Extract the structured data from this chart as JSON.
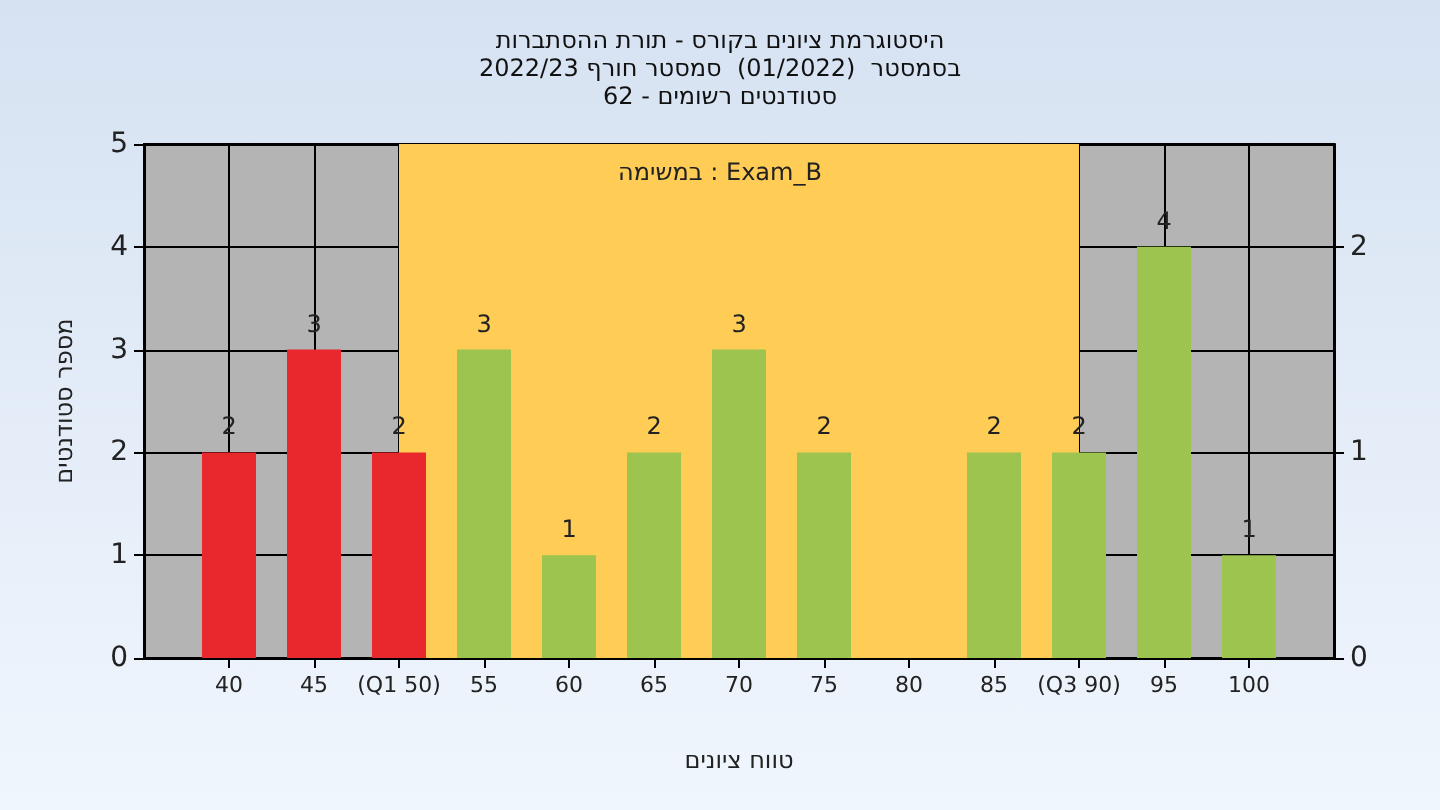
{
  "chart_data": {
    "type": "bar",
    "title": "היסטוגרמת ציונים בקורס - תורת ההסתברות",
    "subtitle": "בסמסטר  (01/2022)  סמסטר חורף 2022/23\nסטודנטים רשומים - 62",
    "xlabel": "טווח ציונים",
    "ylabel": "מספר סטודנטים",
    "annotations": [
      "במשימה : Exam_B"
    ],
    "x": [
      40,
      45,
      50,
      55,
      60,
      65,
      70,
      75,
      80,
      85,
      90,
      95,
      100
    ],
    "values": [
      2,
      3,
      2,
      3,
      1,
      2,
      3,
      2,
      0,
      2,
      2,
      4,
      1
    ],
    "value_labels": [
      "2",
      "3",
      "2",
      "3",
      "1",
      "2",
      "3",
      "2",
      null,
      "2",
      "2",
      "4",
      "1"
    ],
    "colors": [
      "#e8282c",
      "#e8282c",
      "#e8282c",
      "#9cc44e",
      "#9cc44e",
      "#9cc44e",
      "#9cc44e",
      "#9cc44e",
      "#9cc44e",
      "#9cc44e",
      "#9cc44e",
      "#9cc44e",
      "#9cc44e"
    ],
    "xlim": [
      35,
      105
    ],
    "xticks": [
      40,
      45,
      {
        "value": 50,
        "label": "(Q1 50)"
      },
      55,
      60,
      65,
      70,
      75,
      80,
      85,
      {
        "value": 90,
        "label": "(Q3 90)"
      },
      95,
      100
    ],
    "ylim": [
      0,
      5
    ],
    "yticks": [
      0,
      1,
      2,
      3,
      4,
      5
    ],
    "y2lim": [
      0,
      2.5
    ],
    "y2ticks": [
      0,
      1,
      2
    ],
    "bands": [
      {
        "axis": "x",
        "from": 50,
        "to": 90,
        "color": "#ffcc55"
      }
    ],
    "grid": true
  }
}
